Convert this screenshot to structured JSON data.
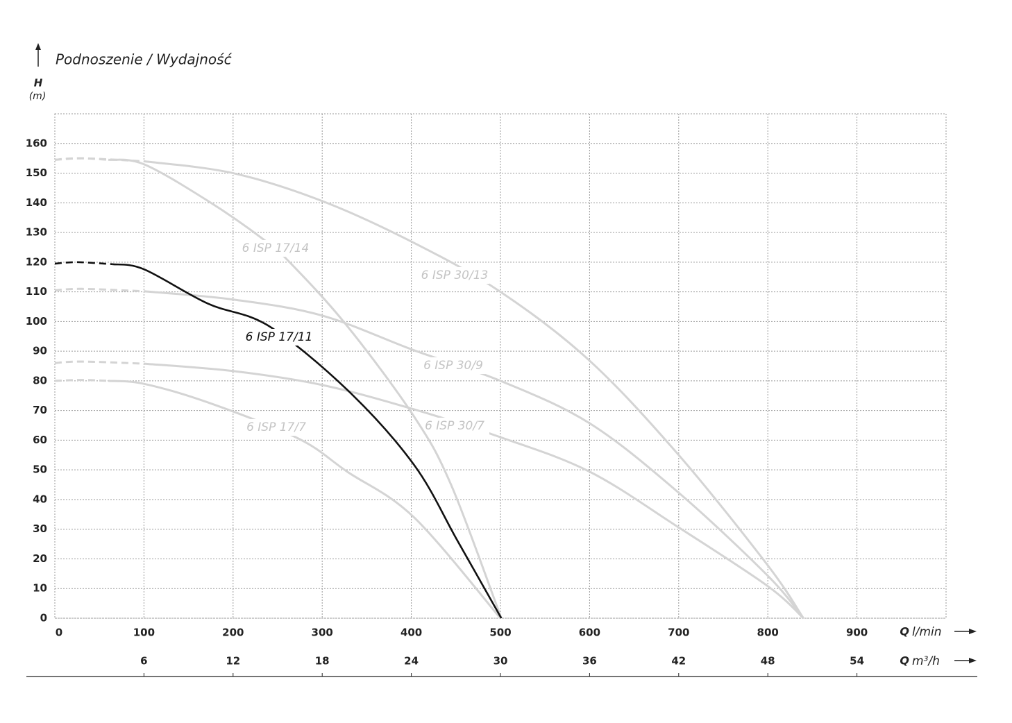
{
  "chart_data": {
    "type": "line",
    "title": "Podnoszenie / Wydajność",
    "y_label": {
      "symbol": "H",
      "unit": "(m)"
    },
    "x_label": {
      "symbol": "Q",
      "unit": "l/min"
    },
    "x2_label": {
      "symbol": "Q",
      "unit": "m³/h"
    },
    "xlim": [
      0,
      1000
    ],
    "xticks": [
      0,
      100,
      200,
      300,
      400,
      500,
      600,
      700,
      800,
      900
    ],
    "x2lim": [
      0,
      60
    ],
    "x2ticks": [
      6,
      12,
      18,
      24,
      30,
      36,
      42,
      48,
      54
    ],
    "ylim": [
      0,
      170
    ],
    "yticks": [
      0,
      10,
      20,
      30,
      40,
      50,
      60,
      70,
      80,
      90,
      100,
      110,
      120,
      130,
      140,
      150,
      160
    ],
    "grid": true,
    "series": [
      {
        "name": "6 ISP 30/13",
        "color": "#d4d4d4",
        "x": [
          0,
          30,
          100,
          200,
          300,
          403,
          500,
          600,
          700,
          800,
          840
        ],
        "values": [
          154.5,
          155,
          154,
          150,
          140.6,
          126.5,
          110,
          86.8,
          55,
          17.8,
          0
        ]
      },
      {
        "name": "6 ISP 30/9",
        "color": "#d4d4d4",
        "x": [
          0,
          30,
          100,
          200,
          300,
          403,
          500,
          600,
          700,
          800,
          840
        ],
        "values": [
          110.5,
          111,
          110.2,
          107.4,
          102,
          90.3,
          80,
          65.7,
          42.3,
          14.3,
          0
        ]
      },
      {
        "name": "6 ISP 30/7",
        "color": "#d4d4d4",
        "x": [
          0,
          30,
          100,
          200,
          300,
          403,
          500,
          600,
          700,
          800,
          840
        ],
        "values": [
          86,
          86.5,
          85.8,
          83.3,
          78.6,
          70.4,
          61,
          49.4,
          30.6,
          10.8,
          0
        ]
      },
      {
        "name": "6 ISP 17/14",
        "color": "#d4d4d4",
        "x": [
          0,
          30,
          60,
          100,
          172,
          234,
          265,
          328,
          403,
          445,
          501
        ],
        "values": [
          154.5,
          155,
          154.5,
          153,
          140.6,
          127.7,
          119.5,
          98.5,
          68,
          44.7,
          0
        ]
      },
      {
        "name": "6 ISP 17/7",
        "color": "#d4d4d4",
        "x": [
          0,
          30,
          60,
          100,
          172,
          273,
          328,
          403,
          500
        ],
        "values": [
          80,
          80.3,
          80,
          79,
          72.7,
          60.6,
          49.4,
          34,
          0
        ]
      },
      {
        "name": "6 ISP 17/11",
        "color": "#111111",
        "x": [
          0,
          25,
          65,
          100,
          172,
          240,
          328,
          403,
          452,
          501
        ],
        "values": [
          119.5,
          120,
          119.3,
          117.6,
          106,
          98.5,
          77,
          51.7,
          26,
          0
        ]
      }
    ]
  }
}
